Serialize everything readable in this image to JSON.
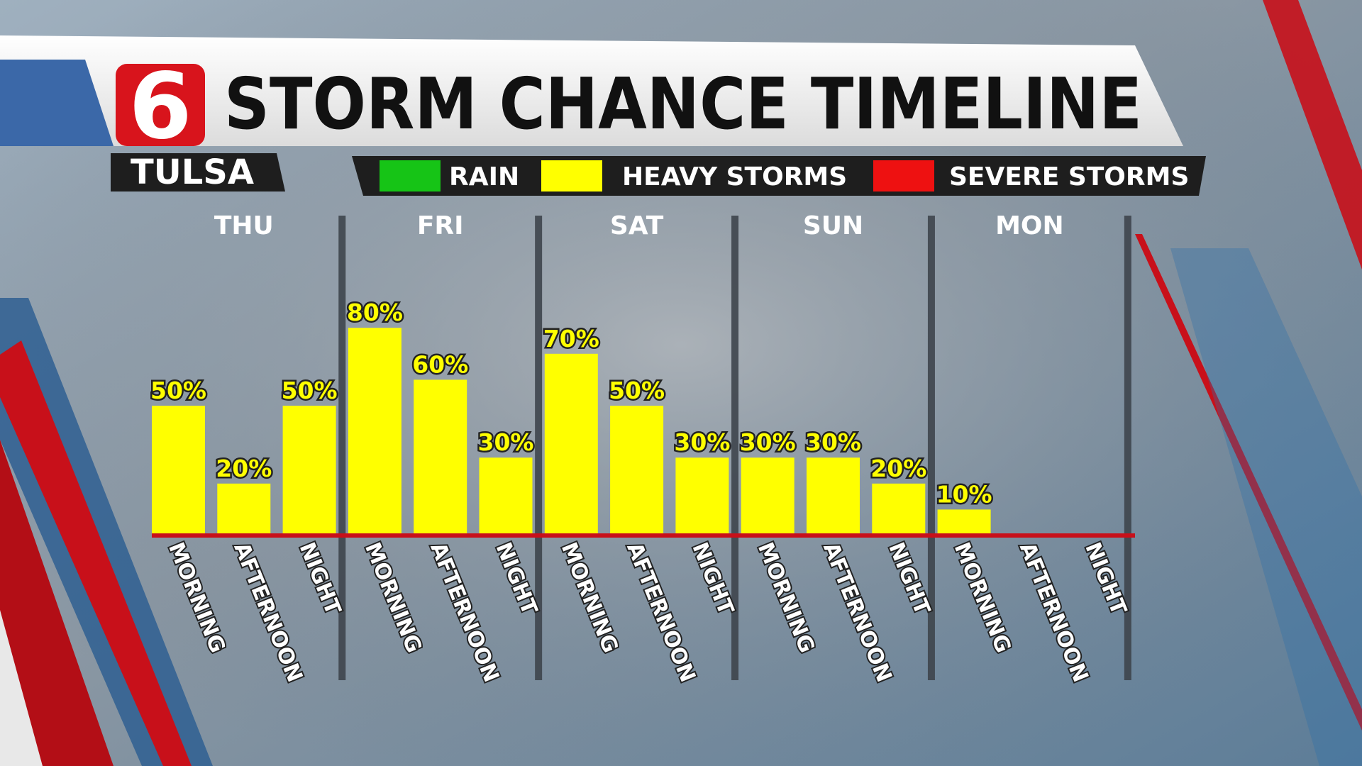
{
  "chart_data": {
    "type": "bar",
    "logo": "6",
    "title": "STORM CHANCE TIMELINE",
    "location": "TULSA",
    "legend": [
      {
        "name": "RAIN",
        "color": "#16c416"
      },
      {
        "name": "HEAVY STORMS",
        "color": "#ffff00"
      },
      {
        "name": "SEVERE STORMS",
        "color": "#ee1111"
      }
    ],
    "days": [
      "THU",
      "FRI",
      "SAT",
      "SUN",
      "MON"
    ],
    "categories": [
      "MORNING",
      "AFTERNOON",
      "NIGHT",
      "MORNING",
      "AFTERNOON",
      "NIGHT",
      "MORNING",
      "AFTERNOON",
      "NIGHT",
      "MORNING",
      "AFTERNOON",
      "NIGHT",
      "MORNING",
      "AFTERNOON",
      "NIGHT"
    ],
    "values": [
      50,
      20,
      50,
      80,
      60,
      30,
      70,
      50,
      30,
      30,
      30,
      20,
      10,
      null,
      null
    ],
    "value_labels": [
      "50%",
      "20%",
      "50%",
      "80%",
      "60%",
      "30%",
      "70%",
      "50%",
      "30%",
      "30%",
      "30%",
      "20%",
      "10%",
      null,
      null
    ],
    "color": "#ffff00",
    "baseline_color": "#c8101a",
    "ylim": [
      0,
      100
    ]
  }
}
